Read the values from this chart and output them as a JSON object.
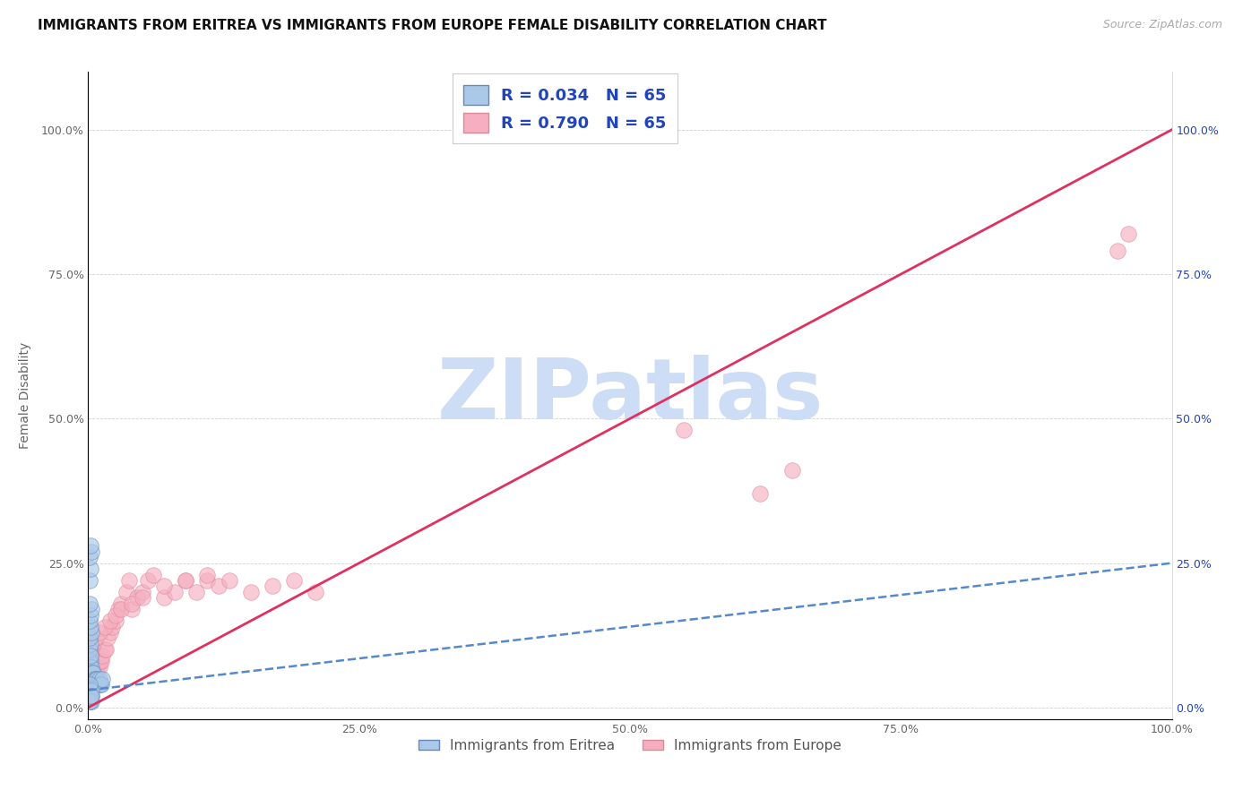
{
  "title": "IMMIGRANTS FROM ERITREA VS IMMIGRANTS FROM EUROPE FEMALE DISABILITY CORRELATION CHART",
  "source": "Source: ZipAtlas.com",
  "ylabel": "Female Disability",
  "xlim": [
    0.0,
    1.0
  ],
  "ylim": [
    -0.02,
    1.1
  ],
  "xtick_labels": [
    "0.0%",
    "25.0%",
    "50.0%",
    "75.0%",
    "100.0%"
  ],
  "xtick_vals": [
    0.0,
    0.25,
    0.5,
    0.75,
    1.0
  ],
  "ytick_labels": [
    "0.0%",
    "25.0%",
    "50.0%",
    "75.0%",
    "100.0%"
  ],
  "ytick_vals": [
    0.0,
    0.25,
    0.5,
    0.75,
    1.0
  ],
  "R_eritrea": 0.034,
  "N_eritrea": 65,
  "R_europe": 0.79,
  "N_europe": 65,
  "color_eritrea_fill": "#aac8e8",
  "color_eritrea_edge": "#6688bb",
  "color_europe_fill": "#f5afc0",
  "color_europe_edge": "#dd8899",
  "color_trend_eritrea": "#5588cc",
  "color_trend_europe": "#e03060",
  "legend_text_color": "#2244bb",
  "right_tick_color": "#2244bb",
  "watermark_color": "#ccddf5",
  "background_color": "#ffffff",
  "title_fontsize": 11,
  "source_fontsize": 9,
  "axis_label_fontsize": 10,
  "tick_fontsize": 9,
  "legend_fontsize": 13,
  "scatter_size": 160,
  "scatter_alpha": 0.65,
  "eritrea_x": [
    0.001,
    0.001,
    0.001,
    0.001,
    0.001,
    0.001,
    0.002,
    0.002,
    0.002,
    0.002,
    0.002,
    0.002,
    0.003,
    0.003,
    0.003,
    0.003,
    0.003,
    0.004,
    0.004,
    0.004,
    0.005,
    0.005,
    0.005,
    0.006,
    0.006,
    0.007,
    0.007,
    0.008,
    0.008,
    0.009,
    0.01,
    0.01,
    0.011,
    0.012,
    0.013,
    0.001,
    0.002,
    0.001,
    0.003,
    0.002,
    0.001,
    0.002,
    0.001,
    0.003,
    0.002,
    0.001,
    0.002,
    0.003,
    0.001,
    0.002,
    0.001,
    0.003,
    0.002,
    0.001,
    0.002,
    0.003,
    0.001,
    0.002,
    0.001,
    0.002,
    0.003,
    0.001,
    0.002,
    0.003,
    0.001
  ],
  "eritrea_y": [
    0.03,
    0.04,
    0.05,
    0.06,
    0.07,
    0.08,
    0.03,
    0.04,
    0.05,
    0.06,
    0.07,
    0.08,
    0.03,
    0.04,
    0.05,
    0.06,
    0.07,
    0.04,
    0.05,
    0.06,
    0.04,
    0.05,
    0.06,
    0.04,
    0.05,
    0.04,
    0.05,
    0.04,
    0.05,
    0.04,
    0.04,
    0.05,
    0.04,
    0.04,
    0.05,
    0.22,
    0.24,
    0.26,
    0.27,
    0.28,
    0.1,
    0.11,
    0.12,
    0.13,
    0.14,
    0.15,
    0.16,
    0.17,
    0.02,
    0.02,
    0.02,
    0.02,
    0.03,
    0.03,
    0.03,
    0.03,
    0.04,
    0.09,
    0.01,
    0.01,
    0.01,
    0.01,
    0.02,
    0.02,
    0.18
  ],
  "europe_x": [
    0.001,
    0.001,
    0.002,
    0.002,
    0.003,
    0.003,
    0.003,
    0.004,
    0.004,
    0.005,
    0.005,
    0.006,
    0.007,
    0.008,
    0.009,
    0.01,
    0.011,
    0.012,
    0.013,
    0.015,
    0.016,
    0.018,
    0.02,
    0.022,
    0.025,
    0.028,
    0.03,
    0.035,
    0.038,
    0.04,
    0.045,
    0.05,
    0.055,
    0.06,
    0.07,
    0.08,
    0.09,
    0.1,
    0.11,
    0.12,
    0.13,
    0.15,
    0.17,
    0.19,
    0.21,
    0.001,
    0.002,
    0.003,
    0.005,
    0.007,
    0.01,
    0.015,
    0.02,
    0.025,
    0.03,
    0.04,
    0.05,
    0.07,
    0.09,
    0.11,
    0.55,
    0.62,
    0.65,
    0.95,
    0.96
  ],
  "europe_y": [
    0.03,
    0.04,
    0.03,
    0.05,
    0.03,
    0.04,
    0.05,
    0.04,
    0.06,
    0.04,
    0.06,
    0.05,
    0.06,
    0.07,
    0.07,
    0.07,
    0.08,
    0.08,
    0.09,
    0.1,
    0.1,
    0.12,
    0.13,
    0.14,
    0.15,
    0.17,
    0.18,
    0.2,
    0.22,
    0.17,
    0.19,
    0.2,
    0.22,
    0.23,
    0.19,
    0.2,
    0.22,
    0.2,
    0.22,
    0.21,
    0.22,
    0.2,
    0.21,
    0.22,
    0.2,
    0.08,
    0.09,
    0.1,
    0.11,
    0.12,
    0.13,
    0.14,
    0.15,
    0.16,
    0.17,
    0.18,
    0.19,
    0.21,
    0.22,
    0.23,
    0.48,
    0.37,
    0.41,
    0.79,
    0.82
  ],
  "europe_trend_x": [
    0.0,
    1.0
  ],
  "europe_trend_y": [
    0.0,
    1.0
  ],
  "eritrea_trend_x": [
    0.0,
    1.0
  ],
  "eritrea_trend_y": [
    0.03,
    0.25
  ]
}
